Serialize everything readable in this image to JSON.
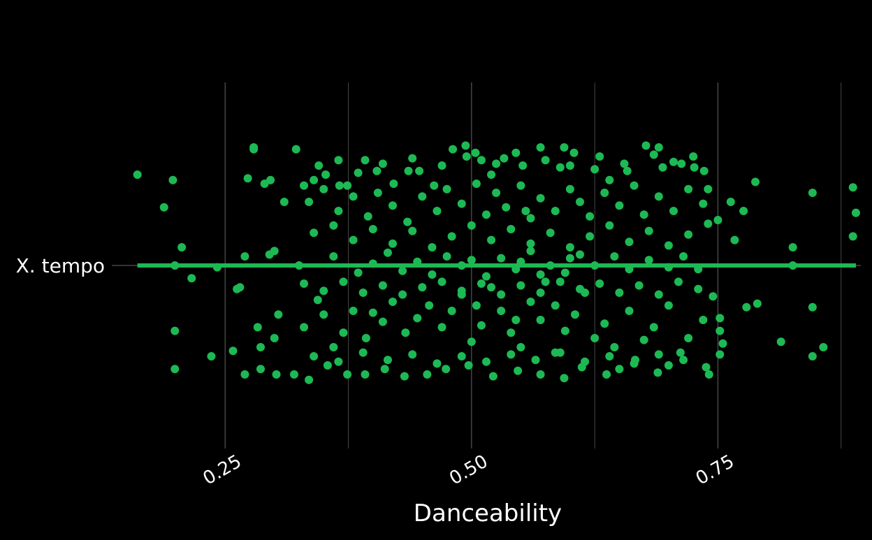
{
  "chart_data": {
    "type": "scatter",
    "xlabel": "Danceability",
    "ylabel": "",
    "category": "X. tempo",
    "xlim": [
      0.135,
      0.895
    ],
    "x_ticks": [
      0.25,
      0.5,
      0.75
    ],
    "x_tick_labels": [
      "0.25",
      "0.50",
      "0.75"
    ],
    "grid": true,
    "point_color": "#1db954",
    "line_color": "#1db954",
    "background": "#000000",
    "grid_color": "#555555",
    "points": [
      {
        "x": 0.161,
        "y": 0.5
      },
      {
        "x": 0.188,
        "y": 0.32
      },
      {
        "x": 0.197,
        "y": 0.47
      },
      {
        "x": 0.199,
        "y": 0.0
      },
      {
        "x": 0.206,
        "y": 0.1
      },
      {
        "x": 0.216,
        "y": -0.07
      },
      {
        "x": 0.199,
        "y": -0.36
      },
      {
        "x": 0.199,
        "y": -0.57
      },
      {
        "x": 0.236,
        "y": -0.5
      },
      {
        "x": 0.258,
        "y": -0.47
      },
      {
        "x": 0.242,
        "y": -0.01
      },
      {
        "x": 0.265,
        "y": -0.12
      },
      {
        "x": 0.262,
        "y": -0.13
      },
      {
        "x": 0.27,
        "y": 0.05
      },
      {
        "x": 0.273,
        "y": 0.48
      },
      {
        "x": 0.279,
        "y": 0.65
      },
      {
        "x": 0.279,
        "y": 0.64
      },
      {
        "x": 0.29,
        "y": 0.45
      },
      {
        "x": 0.296,
        "y": 0.47
      },
      {
        "x": 0.295,
        "y": 0.06
      },
      {
        "x": 0.3,
        "y": 0.08
      },
      {
        "x": 0.31,
        "y": 0.35
      },
      {
        "x": 0.322,
        "y": 0.64
      },
      {
        "x": 0.34,
        "y": 0.47
      },
      {
        "x": 0.33,
        "y": 0.44
      },
      {
        "x": 0.352,
        "y": 0.5
      },
      {
        "x": 0.366,
        "y": 0.44
      },
      {
        "x": 0.374,
        "y": 0.44
      },
      {
        "x": 0.392,
        "y": 0.58
      },
      {
        "x": 0.404,
        "y": 0.52
      },
      {
        "x": 0.421,
        "y": 0.45
      },
      {
        "x": 0.436,
        "y": 0.52
      },
      {
        "x": 0.447,
        "y": 0.52
      },
      {
        "x": 0.462,
        "y": 0.44
      },
      {
        "x": 0.481,
        "y": 0.64
      },
      {
        "x": 0.494,
        "y": 0.66
      },
      {
        "x": 0.504,
        "y": 0.62
      },
      {
        "x": 0.51,
        "y": 0.58
      },
      {
        "x": 0.533,
        "y": 0.59
      },
      {
        "x": 0.552,
        "y": 0.55
      },
      {
        "x": 0.57,
        "y": 0.65
      },
      {
        "x": 0.59,
        "y": 0.54
      },
      {
        "x": 0.594,
        "y": 0.65
      },
      {
        "x": 0.604,
        "y": 0.62
      },
      {
        "x": 0.625,
        "y": 0.53
      },
      {
        "x": 0.64,
        "y": 0.47
      },
      {
        "x": 0.658,
        "y": 0.52
      },
      {
        "x": 0.677,
        "y": 0.66
      },
      {
        "x": 0.69,
        "y": 0.65
      },
      {
        "x": 0.694,
        "y": 0.54
      },
      {
        "x": 0.713,
        "y": 0.56
      },
      {
        "x": 0.726,
        "y": 0.54
      },
      {
        "x": 0.736,
        "y": 0.52
      },
      {
        "x": 0.74,
        "y": 0.42
      },
      {
        "x": 0.763,
        "y": 0.35
      },
      {
        "x": 0.776,
        "y": 0.3
      },
      {
        "x": 0.767,
        "y": 0.14
      },
      {
        "x": 0.788,
        "y": 0.46
      },
      {
        "x": 0.826,
        "y": 0.1
      },
      {
        "x": 0.846,
        "y": 0.4
      },
      {
        "x": 0.887,
        "y": 0.43
      },
      {
        "x": 0.89,
        "y": 0.29
      },
      {
        "x": 0.887,
        "y": 0.16
      },
      {
        "x": 0.826,
        "y": 0.0
      },
      {
        "x": 0.846,
        "y": -0.23
      },
      {
        "x": 0.857,
        "y": -0.45
      },
      {
        "x": 0.846,
        "y": -0.5
      },
      {
        "x": 0.814,
        "y": -0.42
      },
      {
        "x": 0.79,
        "y": -0.21
      },
      {
        "x": 0.779,
        "y": -0.23
      },
      {
        "x": 0.752,
        "y": -0.29
      },
      {
        "x": 0.752,
        "y": -0.36
      },
      {
        "x": 0.755,
        "y": -0.43
      },
      {
        "x": 0.752,
        "y": -0.49
      },
      {
        "x": 0.738,
        "y": -0.56
      },
      {
        "x": 0.741,
        "y": -0.6
      },
      {
        "x": 0.712,
        "y": -0.48
      },
      {
        "x": 0.7,
        "y": -0.55
      },
      {
        "x": 0.689,
        "y": -0.59
      },
      {
        "x": 0.666,
        "y": -0.52
      },
      {
        "x": 0.65,
        "y": -0.57
      },
      {
        "x": 0.637,
        "y": -0.6
      },
      {
        "x": 0.612,
        "y": -0.56
      },
      {
        "x": 0.594,
        "y": -0.62
      },
      {
        "x": 0.57,
        "y": -0.6
      },
      {
        "x": 0.547,
        "y": -0.58
      },
      {
        "x": 0.522,
        "y": -0.61
      },
      {
        "x": 0.497,
        "y": -0.55
      },
      {
        "x": 0.474,
        "y": -0.57
      },
      {
        "x": 0.455,
        "y": -0.6
      },
      {
        "x": 0.432,
        "y": -0.61
      },
      {
        "x": 0.412,
        "y": -0.57
      },
      {
        "x": 0.392,
        "y": -0.6
      },
      {
        "x": 0.374,
        "y": -0.6
      },
      {
        "x": 0.354,
        "y": -0.55
      },
      {
        "x": 0.335,
        "y": -0.63
      },
      {
        "x": 0.32,
        "y": -0.6
      },
      {
        "x": 0.302,
        "y": -0.6
      },
      {
        "x": 0.286,
        "y": -0.57
      },
      {
        "x": 0.27,
        "y": -0.6
      },
      {
        "x": 0.286,
        "y": -0.45
      },
      {
        "x": 0.3,
        "y": -0.4
      },
      {
        "x": 0.283,
        "y": -0.34
      },
      {
        "x": 0.304,
        "y": -0.27
      },
      {
        "x": 0.33,
        "y": -0.34
      },
      {
        "x": 0.35,
        "y": -0.27
      },
      {
        "x": 0.344,
        "y": -0.19
      },
      {
        "x": 0.36,
        "y": -0.45
      },
      {
        "x": 0.37,
        "y": -0.37
      },
      {
        "x": 0.38,
        "y": -0.25
      },
      {
        "x": 0.393,
        "y": -0.4
      },
      {
        "x": 0.4,
        "y": -0.26
      },
      {
        "x": 0.41,
        "y": -0.31
      },
      {
        "x": 0.42,
        "y": -0.2
      },
      {
        "x": 0.433,
        "y": -0.37
      },
      {
        "x": 0.445,
        "y": -0.29
      },
      {
        "x": 0.457,
        "y": -0.22
      },
      {
        "x": 0.47,
        "y": -0.34
      },
      {
        "x": 0.48,
        "y": -0.25
      },
      {
        "x": 0.49,
        "y": -0.16
      },
      {
        "x": 0.5,
        "y": -0.42
      },
      {
        "x": 0.51,
        "y": -0.33
      },
      {
        "x": 0.52,
        "y": -0.12
      },
      {
        "x": 0.53,
        "y": -0.25
      },
      {
        "x": 0.54,
        "y": -0.37
      },
      {
        "x": 0.55,
        "y": -0.45
      },
      {
        "x": 0.56,
        "y": -0.2
      },
      {
        "x": 0.57,
        "y": -0.3
      },
      {
        "x": 0.575,
        "y": -0.09
      },
      {
        "x": 0.585,
        "y": -0.22
      },
      {
        "x": 0.595,
        "y": -0.36
      },
      {
        "x": 0.605,
        "y": -0.27
      },
      {
        "x": 0.615,
        "y": -0.15
      },
      {
        "x": 0.625,
        "y": -0.4
      },
      {
        "x": 0.635,
        "y": -0.32
      },
      {
        "x": 0.645,
        "y": -0.45
      },
      {
        "x": 0.66,
        "y": -0.25
      },
      {
        "x": 0.675,
        "y": -0.41
      },
      {
        "x": 0.685,
        "y": -0.34
      },
      {
        "x": 0.7,
        "y": -0.22
      },
      {
        "x": 0.72,
        "y": -0.4
      },
      {
        "x": 0.735,
        "y": -0.3
      },
      {
        "x": 0.745,
        "y": -0.17
      },
      {
        "x": 0.325,
        "y": 0.0
      },
      {
        "x": 0.36,
        "y": 0.05
      },
      {
        "x": 0.385,
        "y": -0.04
      },
      {
        "x": 0.4,
        "y": 0.01
      },
      {
        "x": 0.415,
        "y": 0.07
      },
      {
        "x": 0.43,
        "y": -0.03
      },
      {
        "x": 0.445,
        "y": 0.02
      },
      {
        "x": 0.46,
        "y": -0.05
      },
      {
        "x": 0.475,
        "y": 0.05
      },
      {
        "x": 0.49,
        "y": 0.0
      },
      {
        "x": 0.5,
        "y": 0.03
      },
      {
        "x": 0.515,
        "y": -0.06
      },
      {
        "x": 0.53,
        "y": 0.04
      },
      {
        "x": 0.545,
        "y": -0.02
      },
      {
        "x": 0.56,
        "y": 0.08
      },
      {
        "x": 0.58,
        "y": 0.0
      },
      {
        "x": 0.595,
        "y": -0.04
      },
      {
        "x": 0.61,
        "y": 0.06
      },
      {
        "x": 0.625,
        "y": 0.0
      },
      {
        "x": 0.645,
        "y": 0.05
      },
      {
        "x": 0.66,
        "y": -0.02
      },
      {
        "x": 0.68,
        "y": 0.03
      },
      {
        "x": 0.7,
        "y": -0.01
      },
      {
        "x": 0.715,
        "y": 0.05
      },
      {
        "x": 0.73,
        "y": -0.02
      },
      {
        "x": 0.335,
        "y": 0.35
      },
      {
        "x": 0.35,
        "y": 0.42
      },
      {
        "x": 0.365,
        "y": 0.3
      },
      {
        "x": 0.38,
        "y": 0.38
      },
      {
        "x": 0.395,
        "y": 0.27
      },
      {
        "x": 0.405,
        "y": 0.4
      },
      {
        "x": 0.42,
        "y": 0.33
      },
      {
        "x": 0.435,
        "y": 0.24
      },
      {
        "x": 0.45,
        "y": 0.38
      },
      {
        "x": 0.465,
        "y": 0.3
      },
      {
        "x": 0.475,
        "y": 0.42
      },
      {
        "x": 0.49,
        "y": 0.34
      },
      {
        "x": 0.505,
        "y": 0.45
      },
      {
        "x": 0.515,
        "y": 0.28
      },
      {
        "x": 0.525,
        "y": 0.4
      },
      {
        "x": 0.535,
        "y": 0.32
      },
      {
        "x": 0.55,
        "y": 0.44
      },
      {
        "x": 0.56,
        "y": 0.26
      },
      {
        "x": 0.57,
        "y": 0.37
      },
      {
        "x": 0.585,
        "y": 0.3
      },
      {
        "x": 0.6,
        "y": 0.42
      },
      {
        "x": 0.61,
        "y": 0.35
      },
      {
        "x": 0.62,
        "y": 0.27
      },
      {
        "x": 0.635,
        "y": 0.4
      },
      {
        "x": 0.65,
        "y": 0.33
      },
      {
        "x": 0.665,
        "y": 0.44
      },
      {
        "x": 0.675,
        "y": 0.28
      },
      {
        "x": 0.69,
        "y": 0.38
      },
      {
        "x": 0.705,
        "y": 0.3
      },
      {
        "x": 0.72,
        "y": 0.42
      },
      {
        "x": 0.735,
        "y": 0.34
      },
      {
        "x": 0.75,
        "y": 0.25
      },
      {
        "x": 0.34,
        "y": 0.18
      },
      {
        "x": 0.36,
        "y": 0.22
      },
      {
        "x": 0.38,
        "y": 0.14
      },
      {
        "x": 0.4,
        "y": 0.2
      },
      {
        "x": 0.42,
        "y": 0.12
      },
      {
        "x": 0.44,
        "y": 0.19
      },
      {
        "x": 0.46,
        "y": 0.1
      },
      {
        "x": 0.48,
        "y": 0.16
      },
      {
        "x": 0.5,
        "y": 0.22
      },
      {
        "x": 0.52,
        "y": 0.14
      },
      {
        "x": 0.54,
        "y": 0.2
      },
      {
        "x": 0.56,
        "y": 0.12
      },
      {
        "x": 0.58,
        "y": 0.18
      },
      {
        "x": 0.6,
        "y": 0.1
      },
      {
        "x": 0.62,
        "y": 0.16
      },
      {
        "x": 0.64,
        "y": 0.22
      },
      {
        "x": 0.66,
        "y": 0.13
      },
      {
        "x": 0.68,
        "y": 0.19
      },
      {
        "x": 0.7,
        "y": 0.11
      },
      {
        "x": 0.72,
        "y": 0.17
      },
      {
        "x": 0.74,
        "y": 0.23
      },
      {
        "x": 0.33,
        "y": -0.1
      },
      {
        "x": 0.35,
        "y": -0.14
      },
      {
        "x": 0.37,
        "y": -0.09
      },
      {
        "x": 0.39,
        "y": -0.15
      },
      {
        "x": 0.41,
        "y": -0.11
      },
      {
        "x": 0.43,
        "y": -0.16
      },
      {
        "x": 0.45,
        "y": -0.12
      },
      {
        "x": 0.47,
        "y": -0.09
      },
      {
        "x": 0.49,
        "y": -0.14
      },
      {
        "x": 0.51,
        "y": -0.1
      },
      {
        "x": 0.53,
        "y": -0.16
      },
      {
        "x": 0.55,
        "y": -0.11
      },
      {
        "x": 0.57,
        "y": -0.15
      },
      {
        "x": 0.59,
        "y": -0.09
      },
      {
        "x": 0.61,
        "y": -0.13
      },
      {
        "x": 0.63,
        "y": -0.1
      },
      {
        "x": 0.65,
        "y": -0.15
      },
      {
        "x": 0.67,
        "y": -0.11
      },
      {
        "x": 0.69,
        "y": -0.16
      },
      {
        "x": 0.71,
        "y": -0.09
      },
      {
        "x": 0.73,
        "y": -0.13
      },
      {
        "x": 0.345,
        "y": 0.55
      },
      {
        "x": 0.365,
        "y": 0.58
      },
      {
        "x": 0.385,
        "y": 0.51
      },
      {
        "x": 0.41,
        "y": 0.56
      },
      {
        "x": 0.44,
        "y": 0.59
      },
      {
        "x": 0.47,
        "y": 0.55
      },
      {
        "x": 0.495,
        "y": 0.6
      },
      {
        "x": 0.525,
        "y": 0.56
      },
      {
        "x": 0.545,
        "y": 0.62
      },
      {
        "x": 0.575,
        "y": 0.58
      },
      {
        "x": 0.6,
        "y": 0.55
      },
      {
        "x": 0.63,
        "y": 0.6
      },
      {
        "x": 0.655,
        "y": 0.56
      },
      {
        "x": 0.685,
        "y": 0.61
      },
      {
        "x": 0.705,
        "y": 0.57
      },
      {
        "x": 0.725,
        "y": 0.6
      },
      {
        "x": 0.34,
        "y": -0.5
      },
      {
        "x": 0.365,
        "y": -0.53
      },
      {
        "x": 0.39,
        "y": -0.48
      },
      {
        "x": 0.415,
        "y": -0.52
      },
      {
        "x": 0.44,
        "y": -0.49
      },
      {
        "x": 0.465,
        "y": -0.54
      },
      {
        "x": 0.49,
        "y": -0.5
      },
      {
        "x": 0.515,
        "y": -0.53
      },
      {
        "x": 0.54,
        "y": -0.49
      },
      {
        "x": 0.565,
        "y": -0.52
      },
      {
        "x": 0.59,
        "y": -0.48
      },
      {
        "x": 0.615,
        "y": -0.53
      },
      {
        "x": 0.64,
        "y": -0.5
      },
      {
        "x": 0.665,
        "y": -0.54
      },
      {
        "x": 0.69,
        "y": -0.49
      },
      {
        "x": 0.715,
        "y": -0.52
      },
      {
        "x": 0.55,
        "y": 0.02
      },
      {
        "x": 0.57,
        "y": -0.05
      },
      {
        "x": 0.6,
        "y": 0.04
      },
      {
        "x": 0.555,
        "y": 0.3
      },
      {
        "x": 0.545,
        "y": -0.3
      },
      {
        "x": 0.52,
        "y": 0.5
      },
      {
        "x": 0.585,
        "y": -0.48
      },
      {
        "x": 0.505,
        "y": -0.22
      }
    ]
  }
}
